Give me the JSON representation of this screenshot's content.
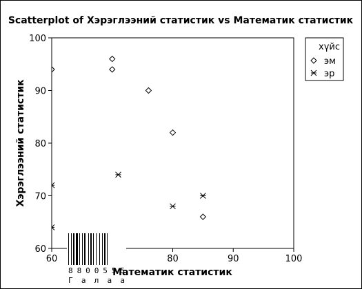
{
  "chart_data": {
    "type": "scatter",
    "title": "Scatterplot of Хэрэглээний статистик vs Математик статистик",
    "xlabel": "Математик статистик",
    "ylabel": "Хэрэглээний статистик",
    "xlim": [
      60,
      100
    ],
    "ylim": [
      60,
      100
    ],
    "xticks": [
      "60",
      "70",
      "80",
      "90",
      "100"
    ],
    "yticks": [
      "60",
      "70",
      "80",
      "90",
      "100"
    ],
    "grid": false,
    "legend": {
      "placement": "top-right",
      "title": "хүйс"
    },
    "series": [
      {
        "name": "эм",
        "marker": "diamond",
        "points": [
          [
            60,
            94
          ],
          [
            70,
            96
          ],
          [
            70,
            94
          ],
          [
            76,
            90
          ],
          [
            80,
            82
          ],
          [
            85,
            66
          ]
        ]
      },
      {
        "name": "эр",
        "marker": "asterisk",
        "points": [
          [
            60,
            72
          ],
          [
            60,
            64
          ],
          [
            71,
            74
          ],
          [
            80,
            68
          ],
          [
            85,
            70
          ]
        ]
      }
    ]
  },
  "barcode": {
    "number": "8800555",
    "label": "Галаа"
  },
  "colors": {
    "ink": "#000000",
    "background": "#ffffff"
  }
}
